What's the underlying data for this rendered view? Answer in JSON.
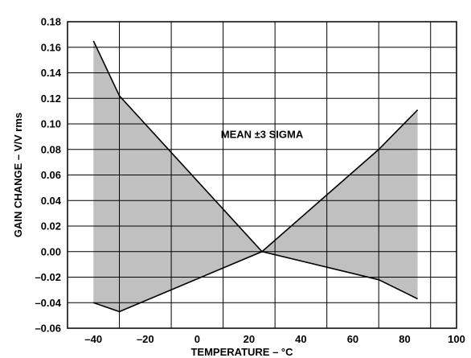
{
  "chart_data": {
    "type": "area",
    "title": "",
    "xlabel": "TEMPERATURE – °C",
    "ylabel": "GAIN CHANGE – V/V rms",
    "xlim": [
      -50,
      100
    ],
    "ylim": [
      -0.06,
      0.18
    ],
    "x_ticks": [
      "–40",
      "–20",
      "0",
      "20",
      "40",
      "60",
      "80",
      "100"
    ],
    "y_ticks": [
      "0.18",
      "0.16",
      "0.14",
      "0.12",
      "0.10",
      "0.08",
      "0.06",
      "0.04",
      "0.02",
      "0.00",
      "–0.02",
      "–0.04",
      "–0.06"
    ],
    "grid": true,
    "annotation": "MEAN ±3 SIGMA",
    "series": [
      {
        "x": [
          -40,
          -30,
          25,
          70,
          85
        ],
        "values": [
          0.165,
          0.122,
          0.0,
          0.08,
          0.111
        ]
      },
      {
        "x": [
          -40,
          -30,
          25,
          70,
          85
        ],
        "values": [
          -0.04,
          -0.047,
          0.0,
          -0.022,
          -0.037
        ]
      }
    ],
    "fill_color": "#c0c0c0",
    "line_color": "#000000"
  }
}
